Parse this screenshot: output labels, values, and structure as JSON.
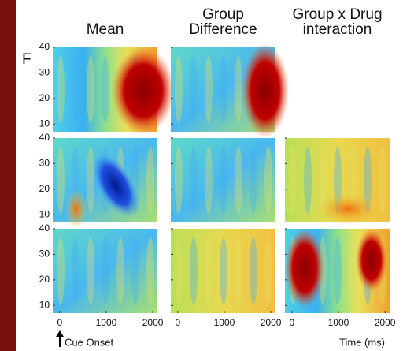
{
  "chart_data": {
    "type": "heatmap",
    "titles": [
      [
        "Mean"
      ],
      [
        "Group",
        "Difference"
      ],
      [
        "Group x Drug",
        "interaction"
      ]
    ],
    "ylabel": "F",
    "xlabel": "Time (ms)",
    "annotation": "Cue Onset",
    "xlim": [
      -150,
      2100
    ],
    "xticks": [
      0,
      1000,
      2000
    ],
    "ylim": [
      7,
      40
    ],
    "yticks": [
      10,
      20,
      30,
      40
    ]
  }
}
